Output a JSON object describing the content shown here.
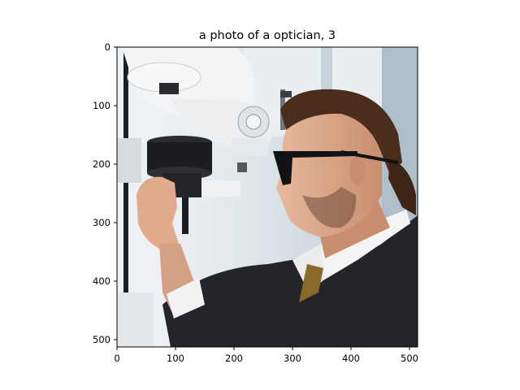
{
  "figure": {
    "title": "a photo of a optician, 3"
  },
  "axes": {
    "x_ticks": [
      {
        "value": 0,
        "label": "0"
      },
      {
        "value": 100,
        "label": "100"
      },
      {
        "value": 200,
        "label": "200"
      },
      {
        "value": 300,
        "label": "300"
      },
      {
        "value": 400,
        "label": "400"
      },
      {
        "value": 500,
        "label": "500"
      }
    ],
    "y_ticks": [
      {
        "value": 0,
        "label": "0"
      },
      {
        "value": 100,
        "label": "100"
      },
      {
        "value": 200,
        "label": "200"
      },
      {
        "value": 300,
        "label": "300"
      },
      {
        "value": 400,
        "label": "400"
      },
      {
        "value": 500,
        "label": "500"
      }
    ],
    "xlim": [
      0,
      512
    ],
    "ylim": [
      512,
      0
    ]
  },
  "colors": {
    "jacket": "#23252b",
    "hair": "#4a2d1c",
    "skin": "#d9a184",
    "tie": "#8a6a2a",
    "background": "#dfe6ea"
  }
}
